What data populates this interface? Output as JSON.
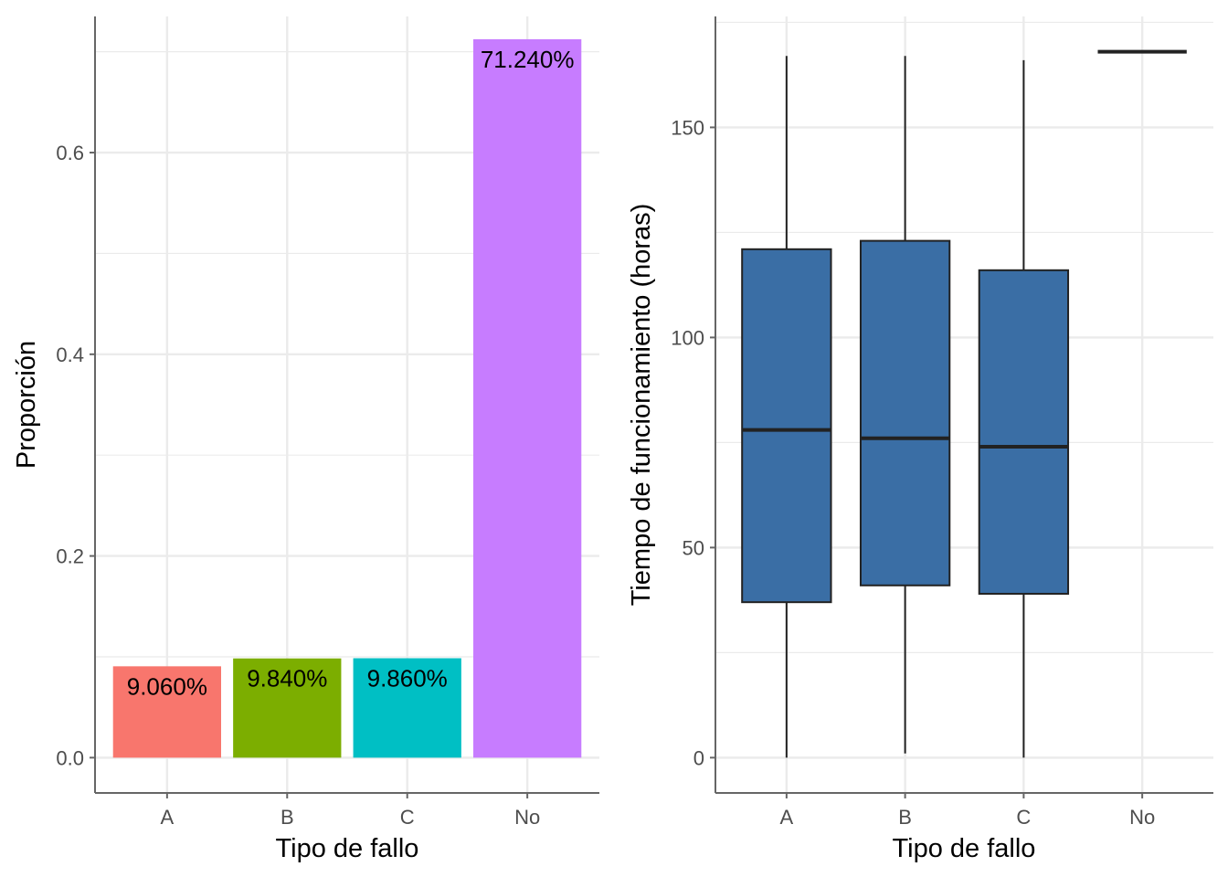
{
  "chart_data": [
    {
      "type": "bar",
      "categories": [
        "A",
        "B",
        "C",
        "No"
      ],
      "values": [
        0.0906,
        0.0984,
        0.0986,
        0.7124
      ],
      "data_labels": [
        "9.060%",
        "9.840%",
        "9.860%",
        "71.240%"
      ],
      "colors": [
        "#f8766d",
        "#7cae00",
        "#00bfc4",
        "#c77cff"
      ],
      "xlabel": "Tipo de fallo",
      "ylabel": "Proporción",
      "ylim": [
        -0.035,
        0.735
      ],
      "yticks": [
        0.0,
        0.2,
        0.4,
        0.6
      ],
      "ytick_labels": [
        "0.0",
        "0.2",
        "0.4",
        "0.6"
      ],
      "grid": true,
      "legend": "none"
    },
    {
      "type": "box",
      "categories": [
        "A",
        "B",
        "C",
        "No"
      ],
      "boxes": [
        {
          "category": "A",
          "min": 0,
          "q1": 37,
          "median": 78,
          "q3": 121,
          "max": 167
        },
        {
          "category": "B",
          "min": 1,
          "q1": 41,
          "median": 76,
          "q3": 123,
          "max": 167
        },
        {
          "category": "C",
          "min": 0,
          "q1": 39,
          "median": 74,
          "q3": 116,
          "max": 166
        },
        {
          "category": "No",
          "min": 168,
          "q1": 168,
          "median": 168,
          "q3": 168,
          "max": 168
        }
      ],
      "fill_color": "#3a6ea5",
      "xlabel": "Tipo de fallo",
      "ylabel": "Tiempo de funcionamiento (horas)",
      "ylim": [
        -8.4,
        176.4
      ],
      "yticks": [
        0,
        50,
        100,
        150
      ],
      "ytick_labels": [
        "0",
        "50",
        "100",
        "150"
      ],
      "grid": true,
      "legend": "none"
    }
  ]
}
